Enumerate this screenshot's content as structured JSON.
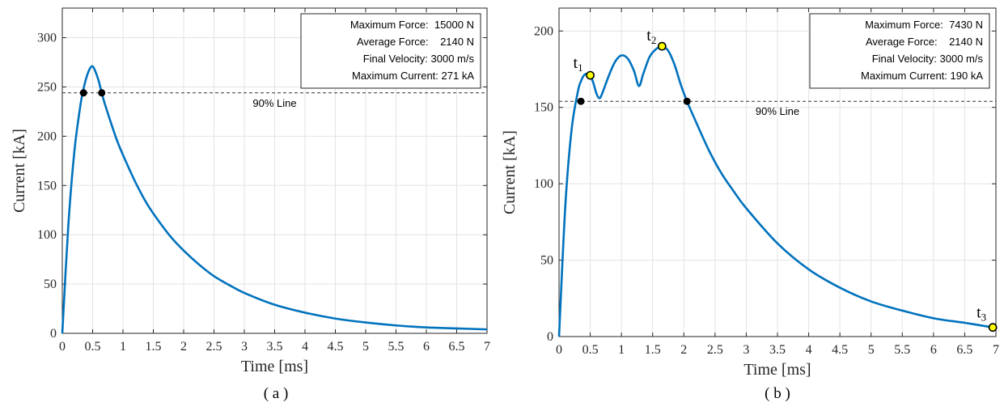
{
  "chart_data": [
    {
      "type": "line",
      "caption": "( a )",
      "xlabel": "Time [ms]",
      "ylabel": "Current [kA]",
      "xlim": [
        0,
        7
      ],
      "ylim": [
        0,
        330
      ],
      "xticks": [
        0,
        0.5,
        1,
        1.5,
        2,
        2.5,
        3,
        3.5,
        4,
        4.5,
        5,
        5.5,
        6,
        6.5,
        7
      ],
      "xtick_labels": [
        "0",
        "0.5",
        "1",
        "1.5",
        "2",
        "2.5",
        "3",
        "3.5",
        "4",
        "4.5",
        "5",
        "5.5",
        "6",
        "6.5",
        "7"
      ],
      "yticks": [
        0,
        50,
        100,
        150,
        200,
        250,
        300
      ],
      "ytick_labels": [
        "0",
        "50",
        "100",
        "150",
        "200",
        "250",
        "300"
      ],
      "grid": true,
      "line_color": "#0072BD",
      "series": [
        {
          "x": [
            0,
            0.1,
            0.2,
            0.3,
            0.35,
            0.4,
            0.45,
            0.5,
            0.55,
            0.6,
            0.65,
            0.7,
            0.8,
            0.9,
            1.0,
            1.2,
            1.4,
            1.6,
            1.8,
            2.0,
            2.25,
            2.5,
            2.75,
            3.0,
            3.5,
            4.0,
            4.5,
            5.0,
            5.5,
            6.0,
            6.5,
            7.0
          ],
          "y": [
            0,
            110,
            185,
            232,
            248,
            260,
            268,
            271,
            265,
            256,
            244,
            233,
            214,
            196,
            181,
            154,
            131,
            113,
            97,
            84,
            70,
            58,
            49,
            41,
            29,
            21,
            15,
            11,
            8,
            6,
            5,
            4
          ]
        }
      ],
      "hline": {
        "y": 244,
        "label": "90% Line",
        "label_x": 3.5
      },
      "markers": [
        {
          "x": 0.35,
          "y": 244,
          "color": "#000000"
        },
        {
          "x": 0.65,
          "y": 244,
          "color": "#000000"
        }
      ],
      "legend_position": "top-right",
      "info_box": [
        "Maximum Force:  15000 N",
        "Average Force:    2140 N",
        "Final Velocity: 3000 m/s",
        "Maximum Current: 271 kA"
      ]
    },
    {
      "type": "line",
      "caption": "( b )",
      "xlabel": "Time [ms]",
      "ylabel": "Current [kA]",
      "xlim": [
        0,
        7
      ],
      "ylim": [
        0,
        215
      ],
      "xticks": [
        0,
        0.5,
        1,
        1.5,
        2,
        2.5,
        3,
        3.5,
        4,
        4.5,
        5,
        5.5,
        6,
        6.5,
        7
      ],
      "xtick_labels": [
        "0",
        "0.5",
        "1",
        "1.5",
        "2",
        "2.5",
        "3",
        "3.5",
        "4",
        "4.5",
        "5",
        "5.5",
        "6",
        "6.5",
        "7"
      ],
      "yticks": [
        0,
        50,
        100,
        150,
        200
      ],
      "ytick_labels": [
        "0",
        "50",
        "100",
        "150",
        "200"
      ],
      "grid": true,
      "line_color": "#0072BD",
      "series": [
        {
          "x": [
            0,
            0.1,
            0.2,
            0.3,
            0.35,
            0.4,
            0.45,
            0.5,
            0.55,
            0.6,
            0.65,
            0.7,
            0.8,
            0.9,
            1.0,
            1.1,
            1.2,
            1.28,
            1.35,
            1.45,
            1.55,
            1.65,
            1.75,
            1.85,
            1.95,
            2.05,
            2.2,
            2.4,
            2.6,
            2.8,
            3.0,
            3.5,
            4.0,
            4.5,
            5.0,
            5.5,
            6.0,
            6.5,
            6.95
          ],
          "y": [
            0,
            85,
            135,
            160,
            167,
            171,
            172,
            171,
            166,
            159,
            156,
            160,
            171,
            180,
            184,
            182,
            174,
            164,
            172,
            183,
            188,
            190,
            187,
            178,
            165,
            154,
            140,
            122,
            107,
            95,
            84,
            61,
            44,
            32,
            23,
            17,
            12,
            9,
            6
          ]
        }
      ],
      "hline": {
        "y": 154,
        "label": "90% Line",
        "label_x": 3.5
      },
      "markers": [
        {
          "x": 0.35,
          "y": 154,
          "color": "#000000"
        },
        {
          "x": 2.05,
          "y": 154,
          "color": "#000000"
        },
        {
          "x": 0.5,
          "y": 171,
          "color": "#FFFF00",
          "label": "t",
          "sub": "1"
        },
        {
          "x": 1.65,
          "y": 190,
          "color": "#FFFF00",
          "label": "t",
          "sub": "2"
        },
        {
          "x": 6.95,
          "y": 6,
          "color": "#FFFF00",
          "label": "t",
          "sub": "3"
        }
      ],
      "legend_position": "top-right",
      "info_box": [
        "Maximum Force:  7430 N",
        "Average Force:    2140 N",
        "Final Velocity: 3000 m/s",
        "Maximum Current: 190 kA"
      ]
    }
  ]
}
